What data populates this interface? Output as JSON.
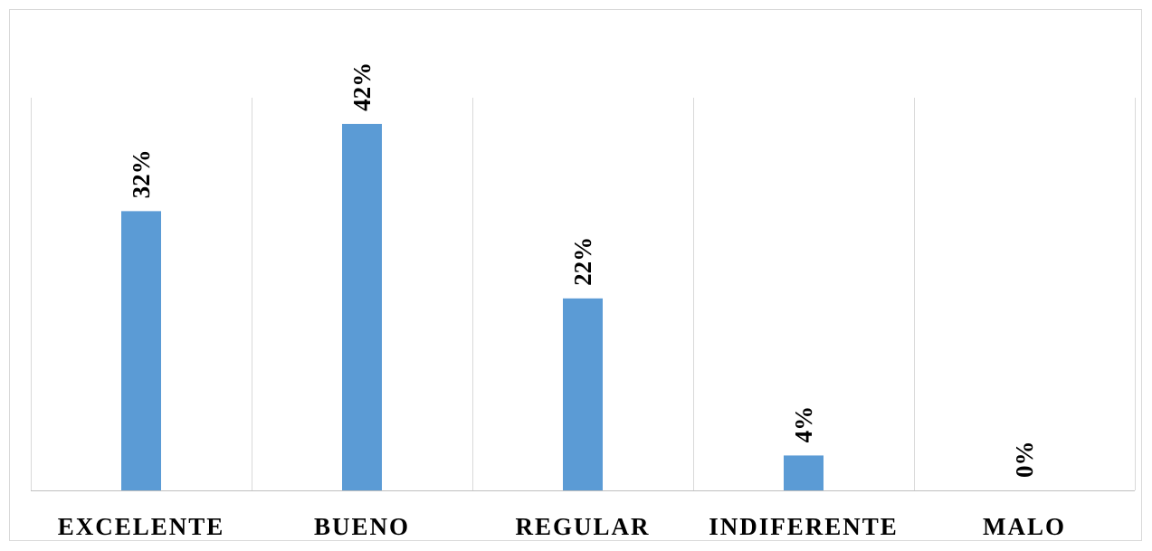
{
  "chart_data": {
    "type": "bar",
    "categories": [
      "EXCELENTE",
      "BUENO",
      "REGULAR",
      "INDIFERENTE",
      "MALO"
    ],
    "values": [
      32,
      42,
      22,
      4,
      0
    ],
    "data_labels": [
      "32%",
      "42%",
      "22%",
      "4%",
      "0%"
    ],
    "ylim": [
      0,
      45
    ],
    "grid": "vertical category separators",
    "legend": "none",
    "bar_color": "#5b9bd5",
    "grid_color": "#d9d9d9",
    "axis_color": "#bfbfbf"
  }
}
